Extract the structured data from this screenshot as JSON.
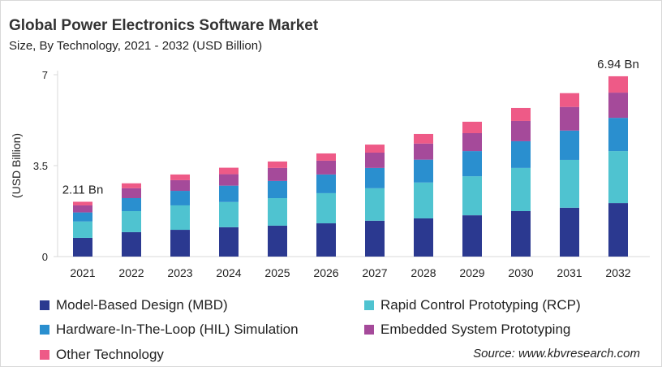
{
  "chart_data": {
    "type": "bar",
    "stacked": true,
    "title": "Global Power Electronics Software Market",
    "subtitle": "Size, By Technology, 2021 - 2032 (USD Billion)",
    "xlabel": "",
    "ylabel": "(USD Billion)",
    "ylim": [
      0,
      7
    ],
    "yticks": [
      "0",
      "3.5",
      "7"
    ],
    "grid": false,
    "legend": "bottom",
    "categories": [
      "2021",
      "2022",
      "2023",
      "2024",
      "2025",
      "2026",
      "2027",
      "2028",
      "2029",
      "2030",
      "2031",
      "2032"
    ],
    "series": [
      {
        "name": "Model-Based Design (MBD)",
        "color": "#2b3990",
        "values": [
          0.72,
          0.94,
          1.03,
          1.13,
          1.19,
          1.28,
          1.38,
          1.47,
          1.59,
          1.75,
          1.88,
          2.06
        ]
      },
      {
        "name": "Rapid Control Prototyping (RCP)",
        "color": "#4fc3d0",
        "values": [
          0.63,
          0.81,
          0.94,
          0.97,
          1.06,
          1.16,
          1.25,
          1.38,
          1.5,
          1.66,
          1.84,
          2.0
        ]
      },
      {
        "name": "Hardware-In-The-Loop (HIL) Simulation",
        "color": "#2a8fcf",
        "values": [
          0.35,
          0.5,
          0.56,
          0.63,
          0.66,
          0.72,
          0.78,
          0.88,
          0.97,
          1.03,
          1.13,
          1.28
        ]
      },
      {
        "name": "Embedded System Prototyping",
        "color": "#a54a9a",
        "values": [
          0.27,
          0.38,
          0.41,
          0.44,
          0.5,
          0.53,
          0.59,
          0.62,
          0.69,
          0.78,
          0.91,
          0.97
        ]
      },
      {
        "name": "Other Technology",
        "color": "#ee5a87",
        "values": [
          0.14,
          0.19,
          0.22,
          0.25,
          0.25,
          0.28,
          0.31,
          0.37,
          0.44,
          0.5,
          0.53,
          0.63
        ]
      }
    ],
    "annotations": [
      {
        "category": "2021",
        "text": "2.11 Bn"
      },
      {
        "category": "2032",
        "text": "6.94 Bn"
      }
    ]
  },
  "source": "Source: www.kbvresearch.com"
}
